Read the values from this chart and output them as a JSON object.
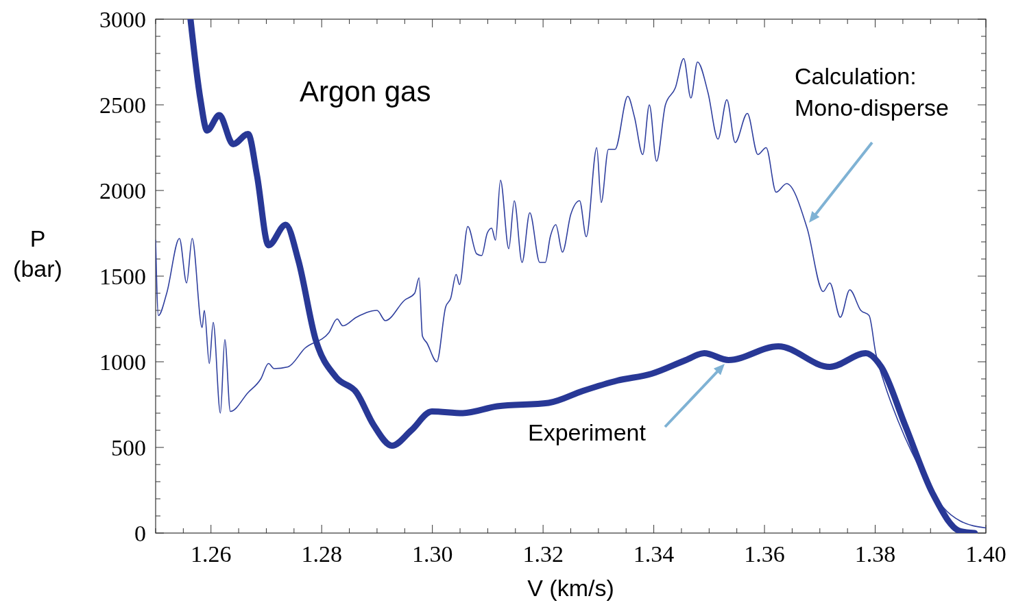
{
  "chart_data": {
    "type": "line",
    "xlabel": "V (km/s)",
    "ylabel": "P\n(bar)",
    "xlim": [
      1.25,
      1.4
    ],
    "ylim": [
      0,
      3000
    ],
    "grid": false,
    "xticks": [
      {
        "value": 1.25,
        "label": null
      },
      {
        "value": 1.255,
        "label": null
      },
      1.26,
      {
        "value": 1.265,
        "label": null
      },
      {
        "value": 1.27,
        "label": null
      },
      {
        "value": 1.275,
        "label": null
      },
      1.28,
      {
        "value": 1.285,
        "label": null
      },
      {
        "value": 1.29,
        "label": null
      },
      {
        "value": 1.295,
        "label": null
      },
      {
        "value": 1.3,
        "label": "1.30"
      },
      {
        "value": 1.305,
        "label": null
      },
      {
        "value": 1.31,
        "label": null
      },
      {
        "value": 1.315,
        "label": null
      },
      1.32,
      {
        "value": 1.325,
        "label": null
      },
      {
        "value": 1.33,
        "label": null
      },
      {
        "value": 1.335,
        "label": null
      },
      1.34,
      {
        "value": 1.345,
        "label": null
      },
      {
        "value": 1.35,
        "label": null
      },
      {
        "value": 1.355,
        "label": null
      },
      1.36,
      {
        "value": 1.365,
        "label": null
      },
      {
        "value": 1.37,
        "label": null
      },
      {
        "value": 1.375,
        "label": null
      },
      1.38,
      {
        "value": 1.385,
        "label": null
      },
      {
        "value": 1.39,
        "label": null
      },
      {
        "value": 1.395,
        "label": null
      },
      {
        "value": 1.4,
        "label": "1.40"
      }
    ],
    "yticks": [
      0,
      {
        "value": 100,
        "label": null
      },
      {
        "value": 200,
        "label": null
      },
      {
        "value": 300,
        "label": null
      },
      {
        "value": 400,
        "label": null
      },
      500,
      {
        "value": 600,
        "label": null
      },
      {
        "value": 700,
        "label": null
      },
      {
        "value": 800,
        "label": null
      },
      {
        "value": 900,
        "label": null
      },
      1000,
      {
        "value": 1100,
        "label": null
      },
      {
        "value": 1200,
        "label": null
      },
      {
        "value": 1300,
        "label": null
      },
      {
        "value": 1400,
        "label": null
      },
      1500,
      {
        "value": 1600,
        "label": null
      },
      {
        "value": 1700,
        "label": null
      },
      {
        "value": 1800,
        "label": null
      },
      {
        "value": 1900,
        "label": null
      },
      2000,
      {
        "value": 2100,
        "label": null
      },
      {
        "value": 2200,
        "label": null
      },
      {
        "value": 2300,
        "label": null
      },
      {
        "value": 2400,
        "label": null
      },
      2500,
      {
        "value": 2600,
        "label": null
      },
      {
        "value": 2700,
        "label": null
      },
      {
        "value": 2800,
        "label": null
      },
      {
        "value": 2900,
        "label": null
      },
      3000
    ],
    "annotations": [
      "Argon gas",
      "Calculation:\nMono-disperse",
      "Experiment"
    ],
    "series": [
      {
        "color": "#2f3f9e",
        "x": [
          1.25,
          1.2505,
          1.252,
          1.2543,
          1.2556,
          1.2566,
          1.2584,
          1.2588,
          1.2597,
          1.2604,
          1.2617,
          1.2625,
          1.2635,
          1.2667,
          1.269,
          1.2704,
          1.2714,
          1.2739,
          1.277,
          1.2813,
          1.2828,
          1.2838,
          1.2863,
          1.29,
          1.2915,
          1.295,
          1.2968,
          1.2976,
          1.2982,
          1.299,
          1.3008,
          1.3024,
          1.3033,
          1.3043,
          1.3049,
          1.3064,
          1.308,
          1.3089,
          1.3099,
          1.3107,
          1.3114,
          1.3123,
          1.3138,
          1.3148,
          1.3162,
          1.3176,
          1.3194,
          1.3204,
          1.3213,
          1.3223,
          1.3235,
          1.325,
          1.3266,
          1.3278,
          1.3297,
          1.3305,
          1.3318,
          1.333,
          1.3353,
          1.3365,
          1.338,
          1.3392,
          1.3405,
          1.3421,
          1.3439,
          1.3454,
          1.3467,
          1.3479,
          1.3498,
          1.3516,
          1.3532,
          1.3547,
          1.3569,
          1.3588,
          1.3603,
          1.3621,
          1.364,
          1.3677,
          1.3706,
          1.3718,
          1.3737,
          1.3754,
          1.3774,
          1.3789,
          1.3801,
          1.3817,
          1.3842,
          1.3892,
          1.3923,
          1.3954,
          1.4
        ],
        "values": [
          1710,
          1270,
          1400,
          1720,
          1460,
          1720,
          1200,
          1300,
          990,
          1230,
          700,
          1130,
          710,
          820,
          900,
          990,
          960,
          970,
          1080,
          1170,
          1250,
          1210,
          1260,
          1300,
          1240,
          1360,
          1400,
          1490,
          1150,
          1110,
          1000,
          1320,
          1370,
          1510,
          1450,
          1790,
          1630,
          1620,
          1750,
          1780,
          1710,
          2060,
          1660,
          1940,
          1580,
          1870,
          1580,
          1580,
          1730,
          1800,
          1640,
          1860,
          1940,
          1730,
          2250,
          1930,
          2240,
          2240,
          2550,
          2430,
          2210,
          2500,
          2170,
          2500,
          2600,
          2770,
          2540,
          2750,
          2570,
          2300,
          2530,
          2280,
          2450,
          2210,
          2250,
          1990,
          2040,
          1780,
          1410,
          1460,
          1260,
          1420,
          1300,
          1270,
          1050,
          870,
          650,
          310,
          150,
          70,
          30
        ]
      },
      {
        "color": "#283896",
        "x": [
          1.2563,
          1.2581,
          1.2593,
          1.2615,
          1.264,
          1.2667,
          1.2683,
          1.2704,
          1.2735,
          1.2758,
          1.2789,
          1.2826,
          1.2863,
          1.2894,
          1.2927,
          1.2962,
          1.2999,
          1.3055,
          1.3117,
          1.321,
          1.3272,
          1.3334,
          1.3396,
          1.3458,
          1.3491,
          1.3535,
          1.3625,
          1.3718,
          1.3783,
          1.3811,
          1.3854,
          1.3904,
          1.3954,
          1.398
        ],
        "values": [
          3000,
          2530,
          2350,
          2440,
          2270,
          2330,
          2090,
          1680,
          1800,
          1590,
          1130,
          910,
          820,
          630,
          510,
          600,
          710,
          700,
          740,
          760,
          830,
          890,
          930,
          1010,
          1050,
          1010,
          1090,
          970,
          1050,
          970,
          630,
          230,
          10,
          0
        ]
      }
    ]
  }
}
